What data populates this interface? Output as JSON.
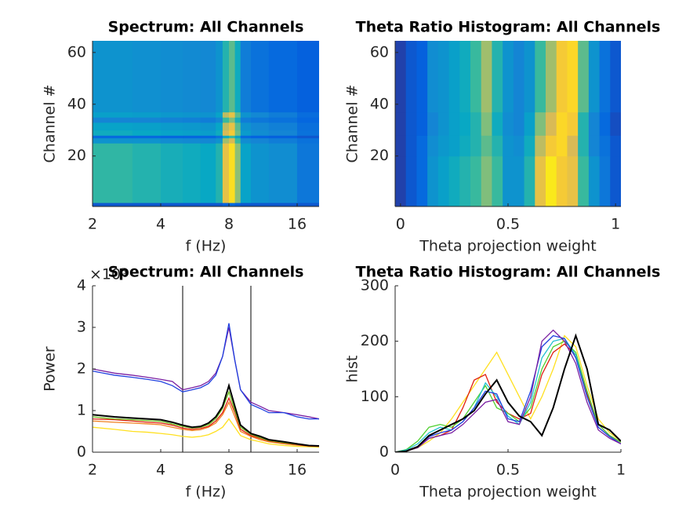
{
  "chart_data": [
    {
      "type": "heatmap",
      "title": "Spectrum: All Channels",
      "xlabel": "f (Hz)",
      "ylabel": "Channel #",
      "xscale": "log",
      "xlim": [
        2,
        20
      ],
      "ylim": [
        0.5,
        64.5
      ],
      "xticks": [
        2,
        4,
        8,
        16
      ],
      "yticks": [
        20,
        40,
        60
      ],
      "clim": [
        0,
        1
      ],
      "colormap": [
        "#352a87",
        "#0363e1",
        "#1485d4",
        "#06a7c6",
        "#38b99e",
        "#92bf73",
        "#d9ba56",
        "#fcce2e",
        "#f9fb0e"
      ],
      "xbins": [
        2,
        3,
        4,
        5,
        6,
        7,
        7.5,
        8,
        8.5,
        9,
        10,
        12,
        16,
        20
      ],
      "ybins": [
        0.5,
        2,
        25,
        27,
        28,
        30,
        33,
        35,
        37,
        64.5
      ],
      "z": [
        [
          0.1,
          0.1,
          0.1,
          0.1,
          0.1,
          0.1,
          0.12,
          0.15,
          0.12,
          0.1,
          0.1,
          0.1,
          0.1
        ],
        [
          0.48,
          0.45,
          0.42,
          0.4,
          0.38,
          0.45,
          0.8,
          0.92,
          0.62,
          0.36,
          0.3,
          0.28,
          0.2
        ],
        [
          0.3,
          0.3,
          0.28,
          0.27,
          0.26,
          0.3,
          0.65,
          0.75,
          0.5,
          0.28,
          0.25,
          0.22,
          0.18
        ],
        [
          0.15,
          0.15,
          0.14,
          0.14,
          0.14,
          0.18,
          0.4,
          0.5,
          0.35,
          0.15,
          0.13,
          0.12,
          0.1
        ],
        [
          0.4,
          0.38,
          0.36,
          0.35,
          0.34,
          0.4,
          0.75,
          0.85,
          0.58,
          0.33,
          0.28,
          0.25,
          0.18
        ],
        [
          0.36,
          0.35,
          0.33,
          0.32,
          0.31,
          0.37,
          0.7,
          0.8,
          0.55,
          0.3,
          0.26,
          0.23,
          0.17
        ],
        [
          0.25,
          0.25,
          0.24,
          0.23,
          0.22,
          0.26,
          0.5,
          0.6,
          0.42,
          0.22,
          0.2,
          0.18,
          0.14
        ],
        [
          0.35,
          0.34,
          0.32,
          0.31,
          0.3,
          0.36,
          0.7,
          0.8,
          0.55,
          0.3,
          0.26,
          0.22,
          0.16
        ],
        [
          0.3,
          0.29,
          0.28,
          0.27,
          0.26,
          0.3,
          0.45,
          0.55,
          0.4,
          0.22,
          0.18,
          0.15,
          0.12
        ]
      ]
    },
    {
      "type": "heatmap",
      "title": "Theta Ratio Histogram: All Channels",
      "xlabel": "Theta projection weight",
      "ylabel": "Channel #",
      "xlim": [
        -0.025,
        1.025
      ],
      "ylim": [
        0.5,
        64.5
      ],
      "xticks": [
        0,
        0.5,
        1
      ],
      "yticks": [
        20,
        40,
        60
      ],
      "clim": [
        0,
        1
      ],
      "colormap": [
        "#352a87",
        "#0363e1",
        "#1485d4",
        "#06a7c6",
        "#38b99e",
        "#92bf73",
        "#d9ba56",
        "#fcce2e",
        "#f9fb0e"
      ],
      "xbins": [
        -0.025,
        0.025,
        0.075,
        0.125,
        0.175,
        0.225,
        0.275,
        0.325,
        0.375,
        0.425,
        0.475,
        0.525,
        0.575,
        0.625,
        0.675,
        0.725,
        0.775,
        0.825,
        0.875,
        0.925,
        0.975,
        1.025
      ],
      "ybins": [
        0.5,
        20,
        28,
        37,
        64.5
      ],
      "z": [
        [
          0.05,
          0.1,
          0.15,
          0.3,
          0.35,
          0.4,
          0.45,
          0.5,
          0.6,
          0.5,
          0.3,
          0.3,
          0.45,
          0.8,
          0.95,
          0.85,
          0.8,
          0.5,
          0.3,
          0.2,
          0.1
        ],
        [
          0.05,
          0.1,
          0.15,
          0.28,
          0.32,
          0.35,
          0.4,
          0.45,
          0.55,
          0.45,
          0.3,
          0.28,
          0.4,
          0.7,
          0.85,
          0.9,
          0.75,
          0.45,
          0.25,
          0.18,
          0.1
        ],
        [
          0.05,
          0.1,
          0.12,
          0.25,
          0.3,
          0.35,
          0.38,
          0.45,
          0.6,
          0.4,
          0.28,
          0.25,
          0.35,
          0.6,
          0.75,
          0.9,
          0.85,
          0.45,
          0.25,
          0.15,
          0.08
        ],
        [
          0.05,
          0.1,
          0.12,
          0.28,
          0.3,
          0.35,
          0.4,
          0.5,
          0.65,
          0.45,
          0.3,
          0.25,
          0.3,
          0.5,
          0.65,
          0.85,
          0.9,
          0.55,
          0.3,
          0.18,
          0.1
        ]
      ]
    },
    {
      "type": "line",
      "title": "Spectrum: All Channels",
      "xlabel": "f (Hz)",
      "ylabel": "Power",
      "y_multiplier_label": "×10⁵",
      "xscale": "log",
      "xlim": [
        2,
        20
      ],
      "ylim": [
        0,
        4
      ],
      "xticks": [
        2,
        4,
        8,
        16
      ],
      "yticks": [
        0,
        1,
        2,
        3,
        4
      ],
      "vlines": [
        5,
        10
      ],
      "x": [
        2,
        2.5,
        3,
        3.5,
        4,
        4.5,
        5,
        5.5,
        6,
        6.5,
        7,
        7.5,
        8,
        8.5,
        9,
        10,
        11,
        12,
        14,
        16,
        18,
        20
      ],
      "series": [
        {
          "color": "#7a1fa2",
          "values": [
            2.0,
            1.9,
            1.85,
            1.8,
            1.75,
            1.7,
            1.5,
            1.55,
            1.6,
            1.7,
            1.9,
            2.3,
            3.0,
            2.2,
            1.5,
            1.2,
            1.1,
            1.0,
            0.95,
            0.9,
            0.85,
            0.8
          ]
        },
        {
          "color": "#2040e0",
          "values": [
            1.95,
            1.85,
            1.8,
            1.75,
            1.7,
            1.6,
            1.45,
            1.5,
            1.55,
            1.65,
            1.85,
            2.3,
            3.1,
            2.2,
            1.5,
            1.15,
            1.05,
            0.95,
            0.95,
            0.85,
            0.8,
            0.8
          ]
        },
        {
          "color": "#ffe020",
          "values": [
            0.6,
            0.55,
            0.5,
            0.48,
            0.45,
            0.42,
            0.38,
            0.36,
            0.38,
            0.42,
            0.5,
            0.6,
            0.8,
            0.6,
            0.4,
            0.3,
            0.25,
            0.2,
            0.16,
            0.14,
            0.13,
            0.12
          ]
        },
        {
          "color": "#f08020",
          "values": [
            0.75,
            0.72,
            0.7,
            0.68,
            0.66,
            0.6,
            0.55,
            0.52,
            0.54,
            0.6,
            0.7,
            0.9,
            1.2,
            0.85,
            0.5,
            0.38,
            0.3,
            0.25,
            0.2,
            0.17,
            0.15,
            0.14
          ]
        },
        {
          "color": "#e02010",
          "values": [
            0.8,
            0.78,
            0.75,
            0.72,
            0.7,
            0.65,
            0.58,
            0.55,
            0.57,
            0.62,
            0.75,
            0.95,
            1.3,
            0.95,
            0.55,
            0.4,
            0.33,
            0.27,
            0.22,
            0.18,
            0.15,
            0.14
          ]
        },
        {
          "color": "#70c020",
          "values": [
            0.85,
            0.8,
            0.78,
            0.76,
            0.74,
            0.68,
            0.62,
            0.58,
            0.6,
            0.66,
            0.8,
            1.05,
            1.45,
            1.0,
            0.6,
            0.43,
            0.35,
            0.28,
            0.23,
            0.19,
            0.16,
            0.15
          ]
        },
        {
          "color": "#000000",
          "values": [
            0.9,
            0.85,
            0.82,
            0.8,
            0.78,
            0.72,
            0.65,
            0.6,
            0.62,
            0.7,
            0.85,
            1.1,
            1.6,
            1.1,
            0.65,
            0.45,
            0.38,
            0.3,
            0.25,
            0.2,
            0.16,
            0.15
          ]
        }
      ]
    },
    {
      "type": "line",
      "title": "Theta Ratio Histogram: All Channels",
      "xlabel": "Theta projection weight",
      "ylabel": "hist",
      "xlim": [
        0,
        1
      ],
      "ylim": [
        0,
        300
      ],
      "xticks": [
        0,
        0.5,
        1
      ],
      "yticks": [
        0,
        100,
        200,
        300
      ],
      "x": [
        0,
        0.05,
        0.1,
        0.15,
        0.2,
        0.25,
        0.3,
        0.35,
        0.4,
        0.45,
        0.5,
        0.55,
        0.6,
        0.65,
        0.7,
        0.75,
        0.8,
        0.85,
        0.9,
        0.95,
        1
      ],
      "series": [
        {
          "color": "#ffe020",
          "values": [
            0,
            2,
            8,
            20,
            35,
            60,
            90,
            120,
            150,
            180,
            140,
            100,
            60,
            100,
            150,
            210,
            190,
            120,
            60,
            35,
            20
          ]
        },
        {
          "color": "#e02010",
          "values": [
            0,
            3,
            10,
            25,
            30,
            40,
            80,
            130,
            140,
            90,
            70,
            60,
            70,
            140,
            180,
            195,
            175,
            105,
            50,
            30,
            18
          ]
        },
        {
          "color": "#50d030",
          "values": [
            0,
            5,
            20,
            45,
            50,
            45,
            60,
            90,
            120,
            80,
            70,
            55,
            80,
            150,
            190,
            200,
            180,
            110,
            50,
            30,
            18
          ]
        },
        {
          "color": "#20c0d0",
          "values": [
            0,
            4,
            15,
            35,
            45,
            40,
            55,
            80,
            125,
            100,
            65,
            50,
            90,
            170,
            200,
            205,
            175,
            100,
            45,
            28,
            15
          ]
        },
        {
          "color": "#2040e0",
          "values": [
            0,
            2,
            10,
            28,
            35,
            40,
            55,
            80,
            110,
            105,
            60,
            55,
            110,
            190,
            210,
            205,
            170,
            100,
            45,
            28,
            15
          ]
        },
        {
          "color": "#7a1fa2",
          "values": [
            0,
            2,
            8,
            25,
            30,
            35,
            50,
            70,
            90,
            95,
            55,
            50,
            100,
            200,
            220,
            200,
            160,
            90,
            40,
            25,
            15
          ]
        },
        {
          "color": "#000000",
          "values": [
            0,
            2,
            10,
            30,
            40,
            50,
            60,
            75,
            105,
            130,
            90,
            65,
            55,
            30,
            80,
            150,
            210,
            150,
            50,
            40,
            20
          ]
        }
      ]
    }
  ]
}
